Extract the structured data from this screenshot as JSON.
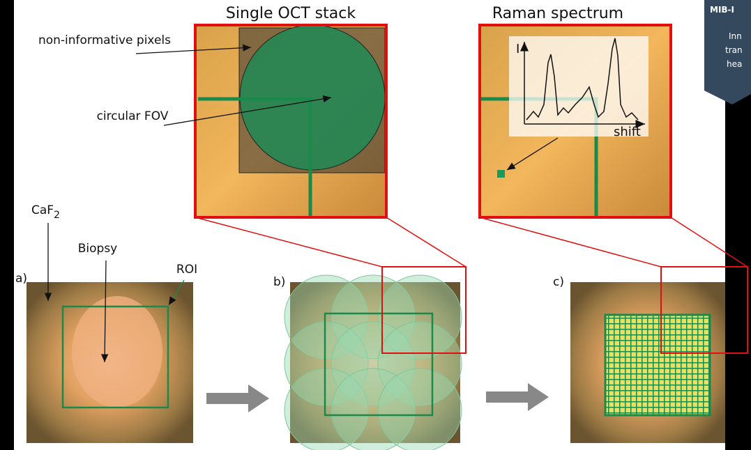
{
  "panels": {
    "oct": {
      "title": "Single OCT stack",
      "pixels_label": "non-informative pixels",
      "fov_label": "circular FOV"
    },
    "raman": {
      "title": "Raman spectrum",
      "y_axis": "I",
      "x_axis": "shift"
    },
    "a": {
      "label": "a)",
      "substrate": {
        "label": "CaF",
        "subscript": "2"
      },
      "biopsy": "Biopsy",
      "roi": "ROI"
    },
    "b": {
      "label": "b)"
    },
    "c": {
      "label": "c)"
    }
  },
  "badge": {
    "title": "MIB-I",
    "lines": [
      "Inn",
      "tran",
      "hea"
    ]
  }
}
